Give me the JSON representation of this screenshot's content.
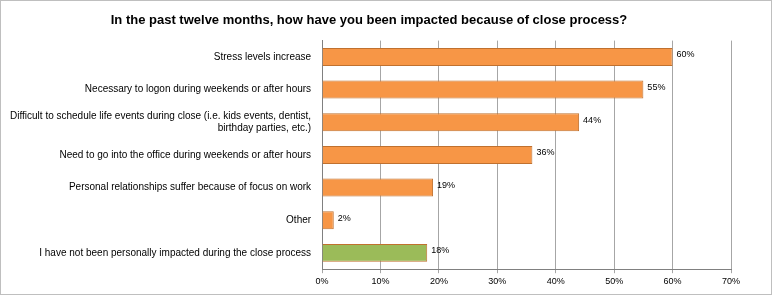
{
  "chart_data": {
    "type": "bar",
    "orientation": "horizontal",
    "title": "In the past twelve months, how have you been impacted because of close process?",
    "categories": [
      "Stress levels increase",
      "Necessary to logon during weekends or after hours",
      "Difficult to schedule life events during close (i.e. kids events, dentist, birthday parties, etc.)",
      "Need to go into the office during weekends or after hours",
      "Personal relationships suffer because of focus on work",
      "Other",
      "I have not been personally impacted during the close process"
    ],
    "values": [
      60,
      55,
      44,
      36,
      19,
      2,
      18
    ],
    "value_labels": [
      "60%",
      "55%",
      "44%",
      "36%",
      "19%",
      "2%",
      "18%"
    ],
    "colors": [
      "#f79646",
      "#f79646",
      "#f79646",
      "#f79646",
      "#f79646",
      "#f79646",
      "#9bbb59"
    ],
    "xlim": [
      0,
      70
    ],
    "xticks": [
      {
        "value": 0,
        "label": "0%"
      },
      {
        "value": 10,
        "label": "10%"
      },
      {
        "value": 20,
        "label": "20%"
      },
      {
        "value": 30,
        "label": "30%"
      },
      {
        "value": 40,
        "label": "40%"
      },
      {
        "value": 50,
        "label": "50%"
      },
      {
        "value": 60,
        "label": "60%"
      },
      {
        "value": 70,
        "label": "70%"
      }
    ],
    "grid": true,
    "data_labels": true
  }
}
